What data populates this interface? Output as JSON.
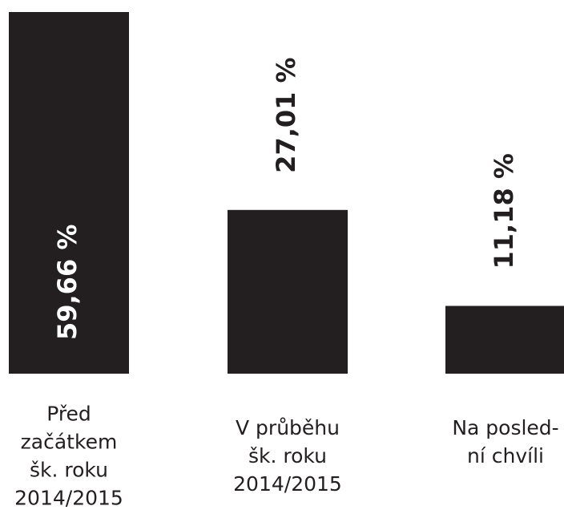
{
  "chart_data": {
    "type": "bar",
    "categories": [
      [
        "Před",
        "začátkem",
        "šk. roku",
        "2014/2015"
      ],
      [
        "V průběhu",
        "šk. roku",
        "2014/2015"
      ],
      [
        "Na posled-",
        "ní chvíli"
      ]
    ],
    "values": [
      59.66,
      27.01,
      11.18
    ],
    "value_labels": [
      "59,66 %",
      "27,01 %",
      "11,18 %"
    ],
    "color": "#231f20"
  }
}
